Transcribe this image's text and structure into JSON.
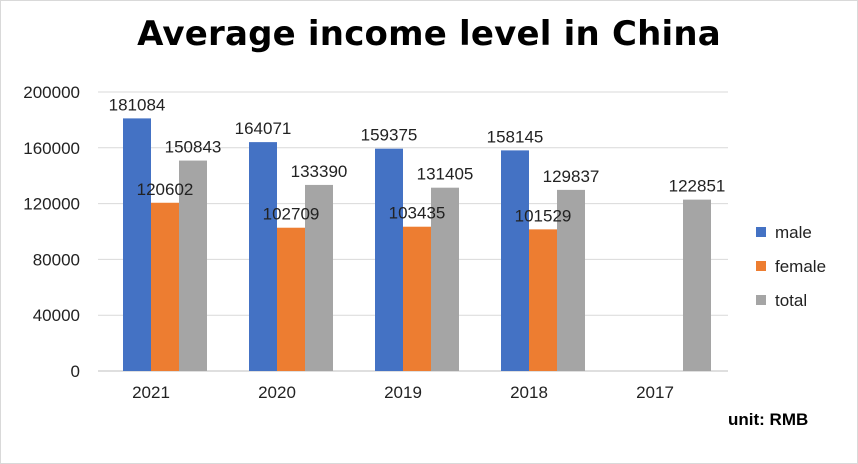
{
  "chart_data": {
    "type": "bar",
    "title": "Average income level in China",
    "unit_note": "unit: RMB",
    "categories": [
      "2021",
      "2020",
      "2019",
      "2018",
      "2017"
    ],
    "series": [
      {
        "name": "male",
        "color": "#4472C4",
        "values": [
          181084,
          164071,
          159375,
          158145,
          null
        ]
      },
      {
        "name": "female",
        "color": "#ED7D31",
        "values": [
          120602,
          102709,
          103435,
          101529,
          null
        ]
      },
      {
        "name": "total",
        "color": "#A5A5A5",
        "values": [
          150843,
          133390,
          131405,
          129837,
          122851
        ]
      }
    ],
    "y_ticks": [
      "0",
      "40000",
      "80000",
      "120000",
      "160000",
      "200000"
    ],
    "ylim": [
      0,
      200000
    ],
    "grid": true,
    "legend_position": "right"
  }
}
